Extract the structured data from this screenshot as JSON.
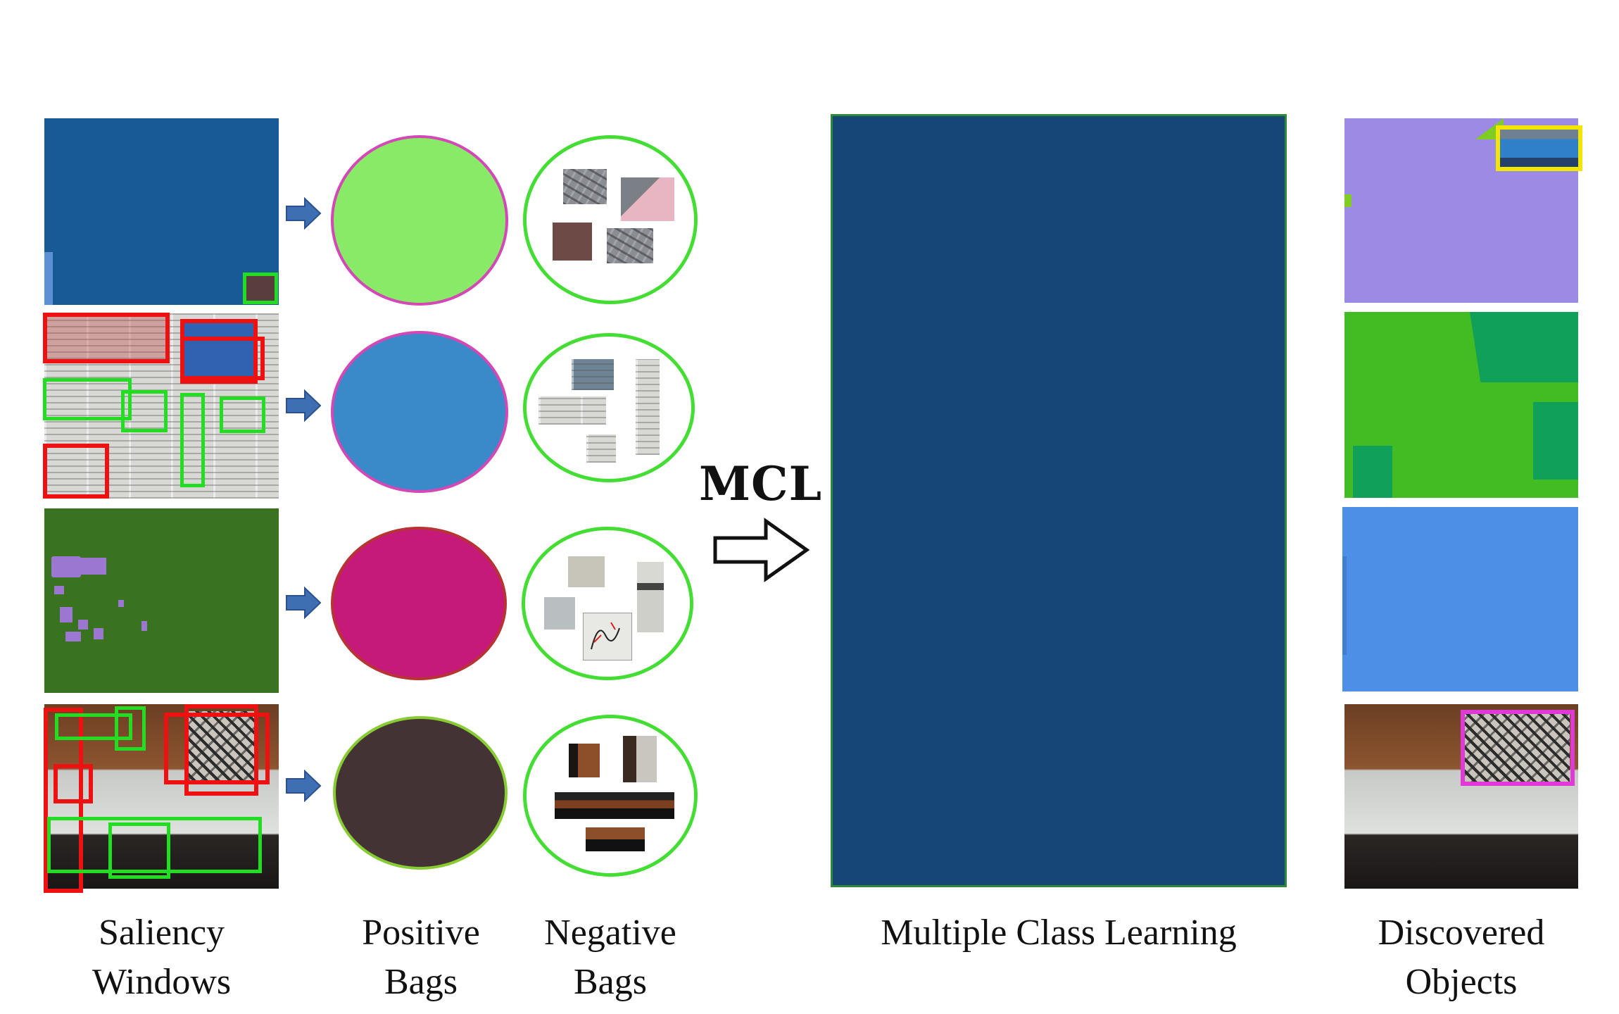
{
  "labels": {
    "saliency_l1": "Saliency",
    "saliency_l2": "Windows",
    "positive_l1": "Positive",
    "positive_l2": "Bags",
    "negative_l1": "Negative",
    "negative_l2": "Bags",
    "mcl_label": "Multiple Class Learning",
    "discovered_l1": "Discovered",
    "discovered_l2": "Objects",
    "mcl_arrow": "MCL"
  },
  "colors": {
    "positive_window": "#22dd22",
    "negative_window": "#ee1111",
    "bag_outline": "#44dd33",
    "mcl_panel": "#154677",
    "arrow_blue": "#3f6fb3",
    "row1_tile": "#175a94",
    "row3_tile": "#3a7320",
    "pos_bag_1": "#88ea66",
    "pos_bag_2": "#3a89c9",
    "pos_bag_3": "#c51a7a",
    "pos_bag_4": "#433335",
    "disc_1": "#9d8ae4",
    "disc_2": "#43bb22",
    "disc_3": "#4d8ee6",
    "disc_box_1": "#f2e600",
    "disc_box_4": "#e03ad6"
  },
  "icons": [
    "right-arrow-icon",
    "outline-arrow-icon"
  ]
}
